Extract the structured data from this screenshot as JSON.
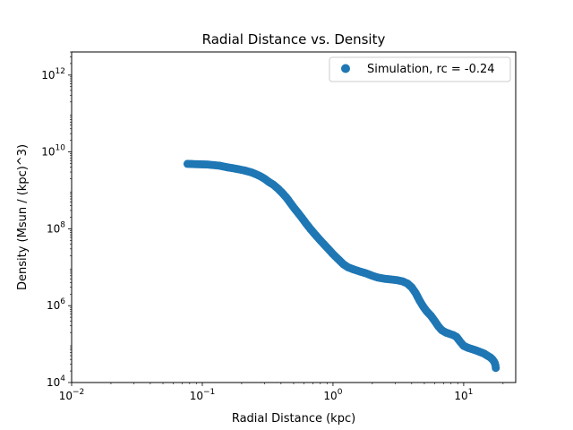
{
  "chart_data": {
    "type": "scatter",
    "title": "Radial Distance vs. Density",
    "xlabel": "Radial Distance (kpc)",
    "ylabel": "Density (Msun / (kpc)^3)",
    "xscale": "log",
    "yscale": "log",
    "xlim": [
      0.01,
      25
    ],
    "ylim": [
      10000,
      4000000000000
    ],
    "grid": false,
    "legend": "top-right",
    "x_ticks": [
      {
        "value": 0.01,
        "base": "10",
        "exp": "−2"
      },
      {
        "value": 0.1,
        "base": "10",
        "exp": "−1"
      },
      {
        "value": 1,
        "base": "10",
        "exp": "0"
      },
      {
        "value": 10,
        "base": "10",
        "exp": "1"
      }
    ],
    "y_ticks": [
      {
        "value": 10000,
        "base": "10",
        "exp": "4"
      },
      {
        "value": 1000000,
        "base": "10",
        "exp": "6"
      },
      {
        "value": 100000000,
        "base": "10",
        "exp": "8"
      },
      {
        "value": 10000000000,
        "base": "10",
        "exp": "10"
      },
      {
        "value": 1000000000000,
        "base": "10",
        "exp": "12"
      }
    ],
    "series": [
      {
        "name": "Simulation, rc = -0.24",
        "color": "#1f77b4",
        "marker": "circle",
        "points": [
          [
            0.077,
            4900000000.0
          ],
          [
            0.11,
            4700000000.0
          ],
          [
            0.135,
            4400000000.0
          ],
          [
            0.155,
            4000000000.0
          ],
          [
            0.17,
            3800000000.0
          ],
          [
            0.185,
            3600000000.0
          ],
          [
            0.21,
            3300000000.0
          ],
          [
            0.225,
            3100000000.0
          ],
          [
            0.24,
            2900000000.0
          ],
          [
            0.26,
            2600000000.0
          ],
          [
            0.28,
            2300000000.0
          ],
          [
            0.3,
            2000000000.0
          ],
          [
            0.32,
            1700000000.0
          ],
          [
            0.35,
            1400000000.0
          ],
          [
            0.38,
            1100000000.0
          ],
          [
            0.41,
            850000000.0
          ],
          [
            0.44,
            650000000.0
          ],
          [
            0.47,
            480000000.0
          ],
          [
            0.5,
            360000000.0
          ],
          [
            0.54,
            260000000.0
          ],
          [
            0.58,
            190000000.0
          ],
          [
            0.62,
            140000000.0
          ],
          [
            0.67,
            100000000.0
          ],
          [
            0.72,
            75000000.0
          ],
          [
            0.78,
            55000000.0
          ],
          [
            0.85,
            40000000.0
          ],
          [
            0.92,
            30000000.0
          ],
          [
            1.0,
            22000000.0
          ],
          [
            1.1,
            16000000.0
          ],
          [
            1.2,
            12000000.0
          ],
          [
            1.3,
            10000000.0
          ],
          [
            1.45,
            8700000.0
          ],
          [
            1.6,
            7800000.0
          ],
          [
            1.8,
            6900000.0
          ],
          [
            2.0,
            6000000.0
          ],
          [
            2.2,
            5400000.0
          ],
          [
            2.5,
            5000000.0
          ],
          [
            2.8,
            4800000.0
          ],
          [
            3.1,
            4600000.0
          ],
          [
            3.4,
            4300000.0
          ],
          [
            3.7,
            3800000.0
          ],
          [
            4.0,
            3000000.0
          ],
          [
            4.3,
            2100000.0
          ],
          [
            4.6,
            1350000.0
          ],
          [
            4.9,
            950000.0
          ],
          [
            5.2,
            720000.0
          ],
          [
            5.6,
            550000.0
          ],
          [
            6.0,
            400000.0
          ],
          [
            6.4,
            290000.0
          ],
          [
            6.8,
            230000.0
          ],
          [
            7.3,
            200000.0
          ],
          [
            7.8,
            185000.0
          ],
          [
            8.3,
            172000.0
          ],
          [
            8.8,
            155000.0
          ],
          [
            9.4,
            115000.0
          ],
          [
            10.0,
            90000.0
          ],
          [
            10.8,
            80000.0
          ],
          [
            11.6,
            74000.0
          ],
          [
            12.5,
            68000.0
          ],
          [
            13.4,
            62000.0
          ],
          [
            14.3,
            57000.0
          ],
          [
            15.2,
            50000.0
          ],
          [
            16.0,
            45000.0
          ],
          [
            16.6,
            40000.0
          ],
          [
            17.0,
            36000.0
          ],
          [
            17.3,
            32000.0
          ],
          [
            17.5,
            28000.0
          ],
          [
            17.6,
            24000.0
          ]
        ]
      }
    ]
  }
}
